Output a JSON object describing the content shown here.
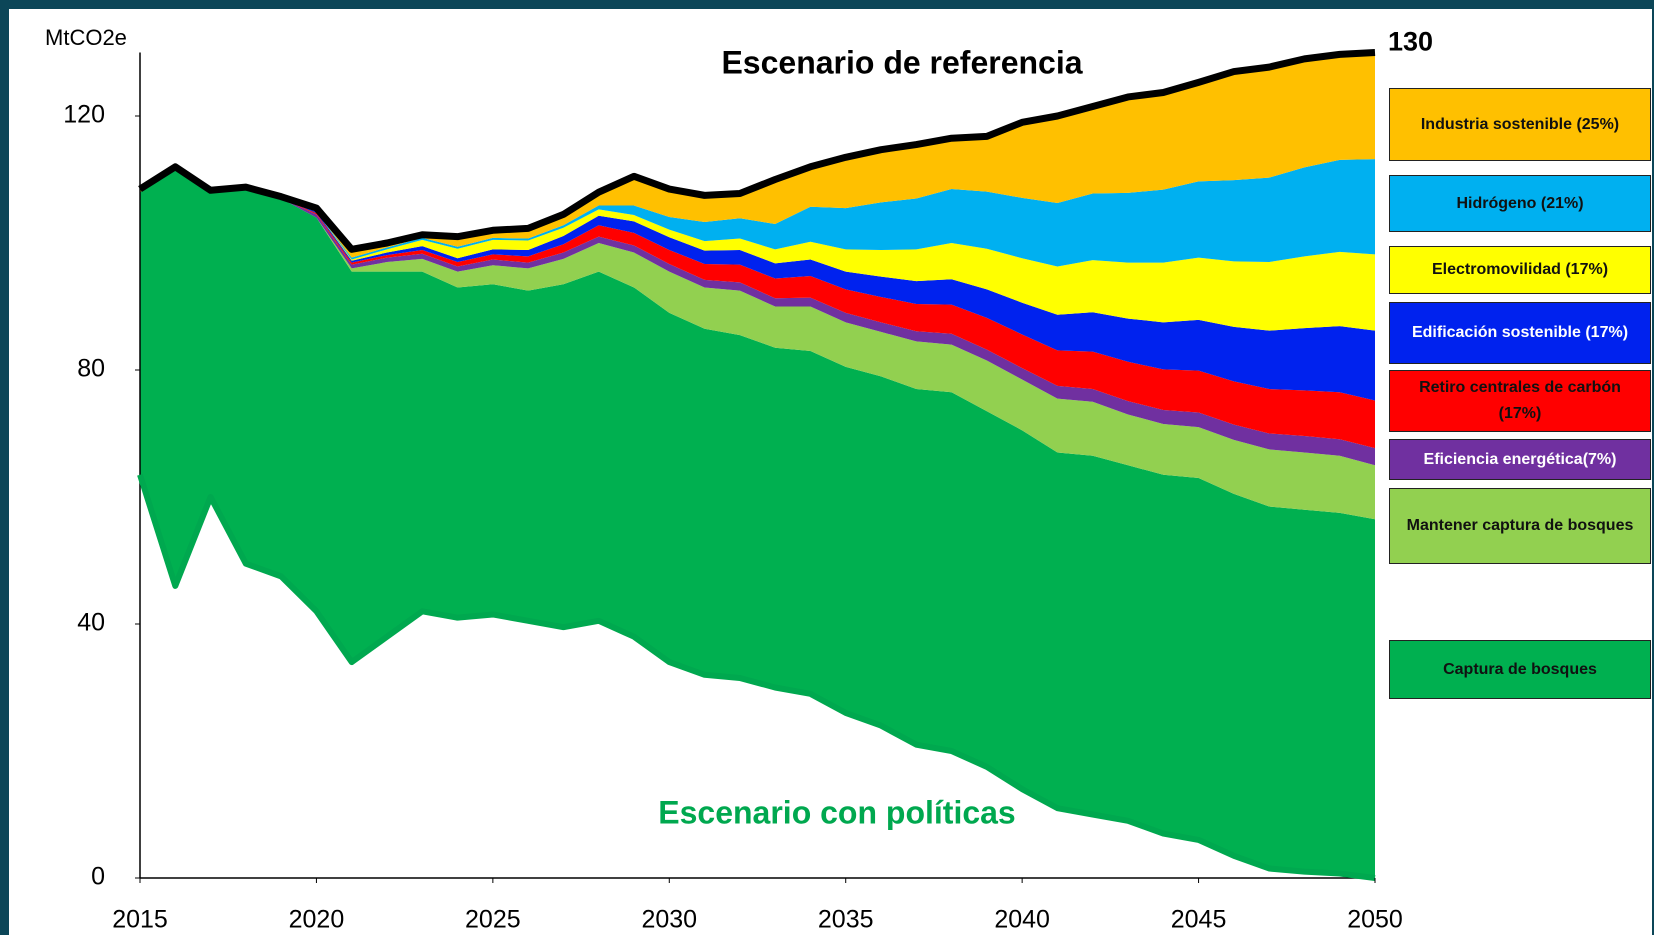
{
  "chart_data": {
    "type": "stacked-area",
    "title": "Escenario de referencia",
    "y_label": "MtCO2e",
    "x": [
      2015,
      2016,
      2017,
      2018,
      2019,
      2020,
      2021,
      2022,
      2023,
      2024,
      2025,
      2026,
      2027,
      2028,
      2029,
      2030,
      2031,
      2032,
      2033,
      2034,
      2035,
      2036,
      2037,
      2038,
      2039,
      2040,
      2041,
      2042,
      2043,
      2044,
      2045,
      2046,
      2047,
      2048,
      2049,
      2050
    ],
    "xlim": [
      2015,
      2050
    ],
    "xticks": [
      2015,
      2020,
      2025,
      2030,
      2035,
      2040,
      2045,
      2050
    ],
    "ylim": [
      0,
      130
    ],
    "yticks": [
      0,
      40,
      80,
      120
    ],
    "grid": false,
    "legend": "right",
    "base": {
      "name": "Escenario con políticas",
      "color": "#00a84f",
      "values": [
        63.5,
        46,
        60,
        49.5,
        47.5,
        42,
        34,
        38,
        42,
        41,
        41.5,
        40.5,
        39.5,
        40.5,
        38,
        34,
        32,
        31.5,
        30,
        29,
        26,
        24,
        21,
        20,
        17.5,
        14,
        11,
        10,
        9,
        7,
        6,
        3.5,
        1.5,
        1,
        0.7,
        0
      ]
    },
    "reference": {
      "name": "Escenario de referencia",
      "color": "#000000",
      "values": [
        108.5,
        112,
        108.3,
        108.8,
        107.3,
        105.5,
        99,
        100,
        101.3,
        101,
        102,
        102.3,
        104.5,
        108,
        110.5,
        108.5,
        107.5,
        107.8,
        110,
        112,
        113.5,
        114.7,
        115.5,
        116.5,
        116.8,
        119,
        120,
        121.5,
        123,
        123.7,
        125.3,
        127,
        127.7,
        129,
        129.7,
        130
      ]
    },
    "series": [
      {
        "name": "Captura de bosques",
        "color": "#00b050",
        "values": [
          44.5,
          66,
          48,
          59,
          59.5,
          62,
          61.5,
          57.5,
          53.5,
          52,
          52,
          52,
          54,
          55,
          55,
          55,
          54.5,
          54,
          53.5,
          54,
          54.5,
          55,
          56,
          56.5,
          56,
          56.5,
          56,
          56.5,
          56,
          56.5,
          57,
          57,
          57,
          57,
          56.8,
          56.5
        ]
      },
      {
        "name": "Mantener captura de bosques",
        "color": "#92d050",
        "values": [
          0,
          0,
          0,
          0,
          0,
          0,
          0.5,
          1.5,
          2,
          2.5,
          3,
          3.5,
          4,
          4.5,
          5.5,
          6.5,
          6.5,
          7,
          6.5,
          7,
          7,
          7,
          7.5,
          7.5,
          8,
          8,
          8.5,
          8.5,
          8,
          8,
          8,
          8.5,
          9,
          9,
          9,
          8.5
        ]
      },
      {
        "name": "Eficiencia energética(7%)",
        "color": "#7030a0",
        "values": [
          0,
          0,
          0,
          0,
          0,
          0.5,
          0.6,
          0.7,
          0.8,
          0.8,
          0.9,
          0.9,
          1,
          1,
          1.1,
          1.2,
          1.2,
          1.3,
          1.3,
          1.4,
          1.5,
          1.5,
          1.6,
          1.7,
          1.7,
          1.8,
          2,
          2,
          2.1,
          2.2,
          2.3,
          2.4,
          2.5,
          2.6,
          2.6,
          2.7
        ]
      },
      {
        "name": "Retiro centrales de carbón (17%)",
        "color": "#ff0000",
        "values": [
          0,
          0,
          0,
          0,
          0,
          0.2,
          0.3,
          0.4,
          0.6,
          0.7,
          0.8,
          1,
          1.3,
          1.8,
          2,
          2.2,
          2.5,
          2.8,
          3.1,
          3.4,
          3.7,
          4,
          4.3,
          4.6,
          5,
          5.3,
          5.6,
          5.9,
          6.2,
          6.4,
          6.6,
          6.8,
          7,
          7.2,
          7.4,
          7.5
        ]
      },
      {
        "name": "Edificación sostenible (17%)",
        "color": "#0022ee",
        "values": [
          0,
          0,
          0,
          0,
          0,
          0.2,
          0.3,
          0.4,
          0.6,
          0.6,
          0.8,
          1,
          1.3,
          1.5,
          1.8,
          2,
          2.1,
          2.3,
          2.4,
          2.6,
          2.8,
          3.2,
          3.6,
          4,
          4.5,
          5,
          5.6,
          6.2,
          6.8,
          7.4,
          8,
          8.6,
          9.2,
          9.8,
          10.4,
          11
        ]
      },
      {
        "name": "Electromovilidad  (17%)",
        "color": "#ffff00",
        "values": [
          0,
          0,
          0,
          0,
          0,
          0,
          0.2,
          0.5,
          1,
          1.5,
          1.5,
          1.5,
          1.3,
          1,
          1,
          1.2,
          1.5,
          1.8,
          2.2,
          2.8,
          3.5,
          4.2,
          5,
          5.7,
          6.4,
          7,
          7.6,
          8.2,
          8.8,
          9.4,
          9.8,
          10.3,
          10.8,
          11.3,
          11.7,
          12
        ]
      },
      {
        "name": "Hidrógeno  (21%)",
        "color": "#00b0f0",
        "values": [
          0,
          0,
          0,
          0,
          0,
          0,
          0.3,
          0.3,
          0.3,
          0.3,
          0.3,
          0.3,
          0.4,
          0.6,
          1.5,
          2,
          3,
          3.2,
          4,
          5.5,
          6.5,
          7.5,
          8,
          8.5,
          9,
          9.5,
          10,
          10.5,
          11,
          11.5,
          12,
          12.8,
          13.3,
          14,
          14.5,
          15
        ]
      },
      {
        "name": "Industria sostenible (25%)",
        "color": "#ffc000",
        "values": [
          0.5,
          0,
          0.3,
          0.3,
          0.3,
          0.6,
          1.3,
          0.7,
          0.5,
          1.6,
          1.2,
          1.6,
          1.7,
          2.1,
          4.6,
          4.4,
          4.2,
          3.9,
          7,
          6.3,
          8,
          8.3,
          8.5,
          8,
          8.7,
          11.9,
          13.7,
          13.7,
          15.1,
          15.3,
          15.6,
          17.1,
          17.4,
          17.1,
          16.6,
          16.8
        ]
      }
    ]
  }
}
